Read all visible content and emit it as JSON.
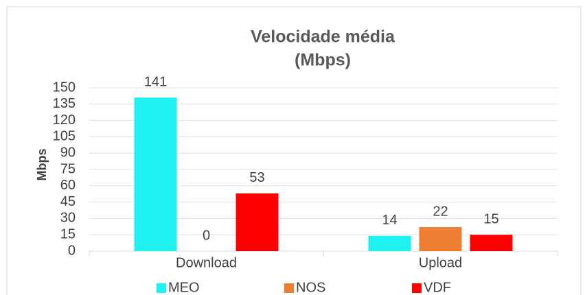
{
  "chart_data": {
    "type": "bar",
    "title": [
      "Velocidade média",
      "(Mbps)"
    ],
    "y_label": "Mbps",
    "categories": [
      "Download",
      "Upload"
    ],
    "series": [
      {
        "name": "MEO",
        "color": "#1ff0f0",
        "values": [
          141,
          14
        ]
      },
      {
        "name": "NOS",
        "color": "#ed7d31",
        "values": [
          0,
          22
        ]
      },
      {
        "name": "VDF",
        "color": "#ff0000",
        "values": [
          53,
          15
        ]
      }
    ],
    "ylim": [
      0,
      150
    ],
    "yticks": [
      0,
      15,
      30,
      45,
      60,
      75,
      90,
      105,
      120,
      135,
      150
    ],
    "grid": true,
    "legend": "bottom"
  }
}
